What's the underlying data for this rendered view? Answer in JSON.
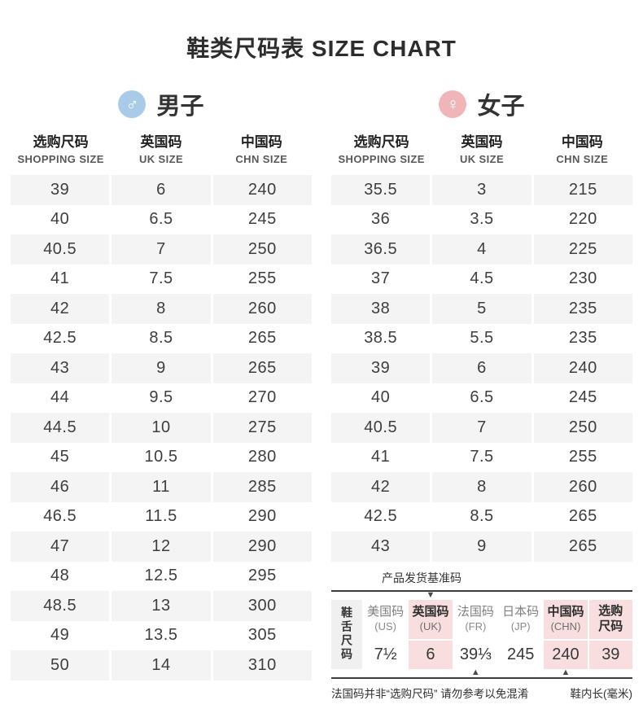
{
  "title": "鞋类尺码表 SIZE CHART",
  "icons": {
    "male": "♂",
    "female": "♀",
    "arrow_down": "▼",
    "arrow_up": "▲"
  },
  "colors": {
    "male_blue": "#aacbe7",
    "female_pink": "#efb5b8",
    "highlight_pink": "#f8dede",
    "stripe_gray": "#f4f4f4",
    "line_dark": "#3c3c3c"
  },
  "column_headers": [
    {
      "zh": "选购尺码",
      "en": "SHOPPING SIZE"
    },
    {
      "zh": "英国码",
      "en": "UK SIZE"
    },
    {
      "zh": "中国码",
      "en": "CHN SIZE"
    }
  ],
  "men": {
    "label": "男子",
    "rows": [
      [
        "39",
        "6",
        "240"
      ],
      [
        "40",
        "6.5",
        "245"
      ],
      [
        "40.5",
        "7",
        "250"
      ],
      [
        "41",
        "7.5",
        "255"
      ],
      [
        "42",
        "8",
        "260"
      ],
      [
        "42.5",
        "8.5",
        "265"
      ],
      [
        "43",
        "9",
        "265"
      ],
      [
        "44",
        "9.5",
        "270"
      ],
      [
        "44.5",
        "10",
        "275"
      ],
      [
        "45",
        "10.5",
        "280"
      ],
      [
        "46",
        "11",
        "285"
      ],
      [
        "46.5",
        "11.5",
        "290"
      ],
      [
        "47",
        "12",
        "290"
      ],
      [
        "48",
        "12.5",
        "295"
      ],
      [
        "48.5",
        "13",
        "300"
      ],
      [
        "49",
        "13.5",
        "305"
      ],
      [
        "50",
        "14",
        "310"
      ]
    ]
  },
  "women": {
    "label": "女子",
    "rows": [
      [
        "35.5",
        "3",
        "215"
      ],
      [
        "36",
        "3.5",
        "220"
      ],
      [
        "36.5",
        "4",
        "225"
      ],
      [
        "37",
        "4.5",
        "230"
      ],
      [
        "38",
        "5",
        "235"
      ],
      [
        "38.5",
        "5.5",
        "235"
      ],
      [
        "39",
        "6",
        "240"
      ],
      [
        "40",
        "6.5",
        "245"
      ],
      [
        "40.5",
        "7",
        "250"
      ],
      [
        "41",
        "7.5",
        "255"
      ],
      [
        "42",
        "8",
        "260"
      ],
      [
        "42.5",
        "8.5",
        "265"
      ],
      [
        "43",
        "9",
        "265"
      ]
    ]
  },
  "base_table": {
    "caption": "产品发货基准码",
    "row_label": "鞋舌尺码",
    "columns": [
      {
        "name": "美国码",
        "sub": "(US)",
        "value": "7½",
        "highlight": false,
        "arrow_top": false,
        "arrow_bottom": false
      },
      {
        "name": "英国码",
        "sub": "(UK)",
        "value": "6",
        "highlight": true,
        "arrow_top": true,
        "arrow_bottom": false
      },
      {
        "name": "法国码",
        "sub": "(FR)",
        "value": "39⅓",
        "highlight": false,
        "arrow_top": false,
        "arrow_bottom": true
      },
      {
        "name": "日本码",
        "sub": "(JP)",
        "value": "245",
        "highlight": false,
        "arrow_top": false,
        "arrow_bottom": false
      },
      {
        "name": "中国码",
        "sub": "(CHN)",
        "value": "240",
        "highlight": true,
        "arrow_top": false,
        "arrow_bottom": true
      },
      {
        "name": "选购尺码",
        "sub": "",
        "value": "39",
        "highlight": true,
        "arrow_top": false,
        "arrow_bottom": false
      }
    ],
    "note_left": "法国码并非“选购尺码” 请勿参考以免混淆",
    "note_right": "鞋内长(毫米)"
  },
  "chart_data": [
    {
      "type": "table",
      "title": "男子 (Men)",
      "columns": [
        "选购尺码 SHOPPING SIZE",
        "英国码 UK SIZE",
        "中国码 CHN SIZE"
      ],
      "rows": [
        [
          "39",
          "6",
          "240"
        ],
        [
          "40",
          "6.5",
          "245"
        ],
        [
          "40.5",
          "7",
          "250"
        ],
        [
          "41",
          "7.5",
          "255"
        ],
        [
          "42",
          "8",
          "260"
        ],
        [
          "42.5",
          "8.5",
          "265"
        ],
        [
          "43",
          "9",
          "265"
        ],
        [
          "44",
          "9.5",
          "270"
        ],
        [
          "44.5",
          "10",
          "275"
        ],
        [
          "45",
          "10.5",
          "280"
        ],
        [
          "46",
          "11",
          "285"
        ],
        [
          "46.5",
          "11.5",
          "290"
        ],
        [
          "47",
          "12",
          "290"
        ],
        [
          "48",
          "12.5",
          "295"
        ],
        [
          "48.5",
          "13",
          "300"
        ],
        [
          "49",
          "13.5",
          "305"
        ],
        [
          "50",
          "14",
          "310"
        ]
      ]
    },
    {
      "type": "table",
      "title": "女子 (Women)",
      "columns": [
        "选购尺码 SHOPPING SIZE",
        "英国码 UK SIZE",
        "中国码 CHN SIZE"
      ],
      "rows": [
        [
          "35.5",
          "3",
          "215"
        ],
        [
          "36",
          "3.5",
          "220"
        ],
        [
          "36.5",
          "4",
          "225"
        ],
        [
          "37",
          "4.5",
          "230"
        ],
        [
          "38",
          "5",
          "235"
        ],
        [
          "38.5",
          "5.5",
          "235"
        ],
        [
          "39",
          "6",
          "240"
        ],
        [
          "40",
          "6.5",
          "245"
        ],
        [
          "40.5",
          "7",
          "250"
        ],
        [
          "41",
          "7.5",
          "255"
        ],
        [
          "42",
          "8",
          "260"
        ],
        [
          "42.5",
          "8.5",
          "265"
        ],
        [
          "43",
          "9",
          "265"
        ]
      ]
    },
    {
      "type": "table",
      "title": "鞋舌尺码 — 产品发货基准码",
      "columns": [
        "美国码 (US)",
        "英国码 (UK)",
        "法国码 (FR)",
        "日本码 (JP)",
        "中国码 (CHN)",
        "选购尺码"
      ],
      "rows": [
        [
          "7½",
          "6",
          "39⅓",
          "245",
          "240",
          "39"
        ]
      ]
    }
  ]
}
